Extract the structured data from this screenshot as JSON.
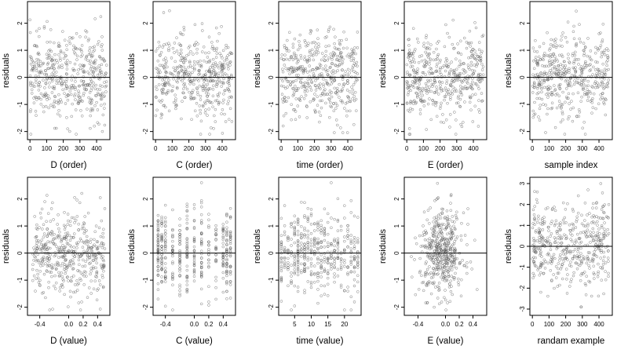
{
  "chart_data": [
    {
      "type": "scatter",
      "xlabel": "D (order)",
      "ylabel": "residuals",
      "xlim": [
        -15,
        480
      ],
      "ylim": [
        -2.3,
        2.8
      ],
      "x_ticks": [
        "0",
        "100",
        "200",
        "300",
        "400"
      ],
      "x_tick_values": [
        0,
        100,
        200,
        300,
        400
      ],
      "y_ticks": [
        "-2",
        "-1",
        "0",
        "1",
        "2"
      ],
      "y_tick_values": [
        -2,
        -1,
        0,
        1,
        2
      ],
      "reference_line": 0,
      "x_domain": [
        0,
        460
      ],
      "y_domain": [
        -2.1,
        2.6
      ],
      "n_points": 460
    },
    {
      "type": "scatter",
      "xlabel": "C (order)",
      "ylabel": "residuals",
      "xlim": [
        -15,
        480
      ],
      "ylim": [
        -2.3,
        2.8
      ],
      "x_ticks": [
        "0",
        "100",
        "200",
        "300",
        "400"
      ],
      "x_tick_values": [
        0,
        100,
        200,
        300,
        400
      ],
      "y_ticks": [
        "-2",
        "-1",
        "0",
        "1",
        "2"
      ],
      "y_tick_values": [
        -2,
        -1,
        0,
        1,
        2
      ],
      "reference_line": 0,
      "x_domain": [
        0,
        460
      ],
      "y_domain": [
        -2.1,
        2.6
      ],
      "n_points": 460
    },
    {
      "type": "scatter",
      "xlabel": "time (order)",
      "ylabel": "residuals",
      "xlim": [
        -15,
        480
      ],
      "ylim": [
        -2.3,
        2.8
      ],
      "x_ticks": [
        "0",
        "100",
        "200",
        "300",
        "400"
      ],
      "x_tick_values": [
        0,
        100,
        200,
        300,
        400
      ],
      "y_ticks": [
        "-2",
        "-1",
        "0",
        "1",
        "2"
      ],
      "y_tick_values": [
        -2,
        -1,
        0,
        1,
        2
      ],
      "reference_line": 0,
      "x_domain": [
        0,
        460
      ],
      "y_domain": [
        -2.1,
        2.6
      ],
      "n_points": 460
    },
    {
      "type": "scatter",
      "xlabel": "E (order)",
      "ylabel": "residuals",
      "xlim": [
        -15,
        480
      ],
      "ylim": [
        -2.3,
        2.8
      ],
      "x_ticks": [
        "0",
        "100",
        "200",
        "300",
        "400"
      ],
      "x_tick_values": [
        0,
        100,
        200,
        300,
        400
      ],
      "y_ticks": [
        "-2",
        "-1",
        "0",
        "1",
        "2"
      ],
      "y_tick_values": [
        -2,
        -1,
        0,
        1,
        2
      ],
      "reference_line": 0,
      "x_domain": [
        0,
        460
      ],
      "y_domain": [
        -2.1,
        2.6
      ],
      "n_points": 460
    },
    {
      "type": "scatter",
      "xlabel": "sample index",
      "ylabel": "residuals",
      "xlim": [
        -15,
        480
      ],
      "ylim": [
        -2.3,
        2.8
      ],
      "x_ticks": [
        "0",
        "100",
        "200",
        "300",
        "400"
      ],
      "x_tick_values": [
        0,
        100,
        200,
        300,
        400
      ],
      "y_ticks": [
        "-2",
        "-1",
        "0",
        "1",
        "2"
      ],
      "y_tick_values": [
        -2,
        -1,
        0,
        1,
        2
      ],
      "reference_line": 0,
      "x_domain": [
        0,
        460
      ],
      "y_domain": [
        -2.1,
        2.6
      ],
      "n_points": 460
    },
    {
      "type": "scatter",
      "xlabel": "D (value)",
      "ylabel": "residuals",
      "xlim": [
        -0.57,
        0.57
      ],
      "ylim": [
        -2.3,
        2.8
      ],
      "x_ticks": [
        "-0.4",
        "0.0",
        "0.2",
        "0.4"
      ],
      "x_tick_values": [
        -0.4,
        0,
        0.2,
        0.4
      ],
      "y_ticks": [
        "-2",
        "-1",
        "0",
        "1",
        "2"
      ],
      "y_tick_values": [
        -2,
        -1,
        0,
        1,
        2
      ],
      "reference_line": 0,
      "x_domain": [
        -0.5,
        0.5
      ],
      "y_domain": [
        -2.1,
        2.6
      ],
      "n_points": 460
    },
    {
      "type": "scatter",
      "xlabel": "C (value)",
      "ylabel": "residuals",
      "xlim": [
        -0.57,
        0.57
      ],
      "ylim": [
        -2.3,
        2.8
      ],
      "x_ticks": [
        "-0.4",
        "0.0",
        "0.2",
        "0.4"
      ],
      "x_tick_values": [
        -0.4,
        0,
        0.2,
        0.4
      ],
      "y_ticks": [
        "-2",
        "-1",
        "0",
        "1",
        "2"
      ],
      "y_tick_values": [
        -2,
        -1,
        0,
        1,
        2
      ],
      "reference_line": 0,
      "x_values_discrete": [
        -0.5,
        -0.45,
        -0.4,
        -0.3,
        -0.2,
        -0.1,
        0,
        0.1,
        0.2,
        0.3,
        0.4,
        0.45,
        0.5
      ],
      "y_domain": [
        -2.1,
        2.6
      ],
      "n_points": 460
    },
    {
      "type": "scatter",
      "xlabel": "time (value)",
      "ylabel": "residuals",
      "xlim": [
        0.2,
        25
      ],
      "ylim": [
        -2.3,
        2.8
      ],
      "x_ticks": [
        "5",
        "10",
        "15",
        "20"
      ],
      "x_tick_values": [
        5,
        10,
        15,
        20
      ],
      "y_ticks": [
        "-2",
        "-1",
        "0",
        "1",
        "2"
      ],
      "y_tick_values": [
        -2,
        -1,
        0,
        1,
        2
      ],
      "reference_line": 0,
      "x_values_discrete": [
        1,
        2,
        3,
        4,
        5,
        6,
        7,
        8,
        9,
        10,
        11,
        12,
        13,
        14,
        15,
        16,
        17,
        18,
        19,
        20,
        21,
        22,
        23,
        24
      ],
      "y_domain": [
        -2.1,
        2.6
      ],
      "n_points": 460
    },
    {
      "type": "scatter",
      "xlabel": "E (value)",
      "ylabel": "residuals",
      "xlim": [
        -0.6,
        0.6
      ],
      "ylim": [
        -2.3,
        2.8
      ],
      "x_ticks": [
        "-0.4",
        "0.0",
        "0.2",
        "0.4"
      ],
      "x_tick_values": [
        -0.4,
        0,
        0.2,
        0.4
      ],
      "y_ticks": [
        "-2",
        "-1",
        "0",
        "1",
        "2"
      ],
      "y_tick_values": [
        -2,
        -1,
        0,
        1,
        2
      ],
      "reference_line": 0,
      "x_center": -0.05,
      "y_domain": [
        -2.1,
        2.6
      ],
      "n_points": 460
    },
    {
      "type": "scatter",
      "xlabel": "randam example",
      "ylabel": "residuals",
      "xlim": [
        -15,
        480
      ],
      "ylim": [
        -3.3,
        3.3
      ],
      "x_ticks": [
        "0",
        "100",
        "200",
        "300",
        "400"
      ],
      "x_tick_values": [
        0,
        100,
        200,
        300,
        400
      ],
      "y_ticks": [
        "-3",
        "-2",
        "-1",
        "0",
        "1",
        "2",
        "3"
      ],
      "y_tick_values": [
        -3,
        -2,
        -1,
        0,
        1,
        2,
        3
      ],
      "reference_line": 0,
      "x_domain": [
        0,
        460
      ],
      "y_domain": [
        -2.9,
        3.0
      ],
      "n_points": 460
    }
  ]
}
